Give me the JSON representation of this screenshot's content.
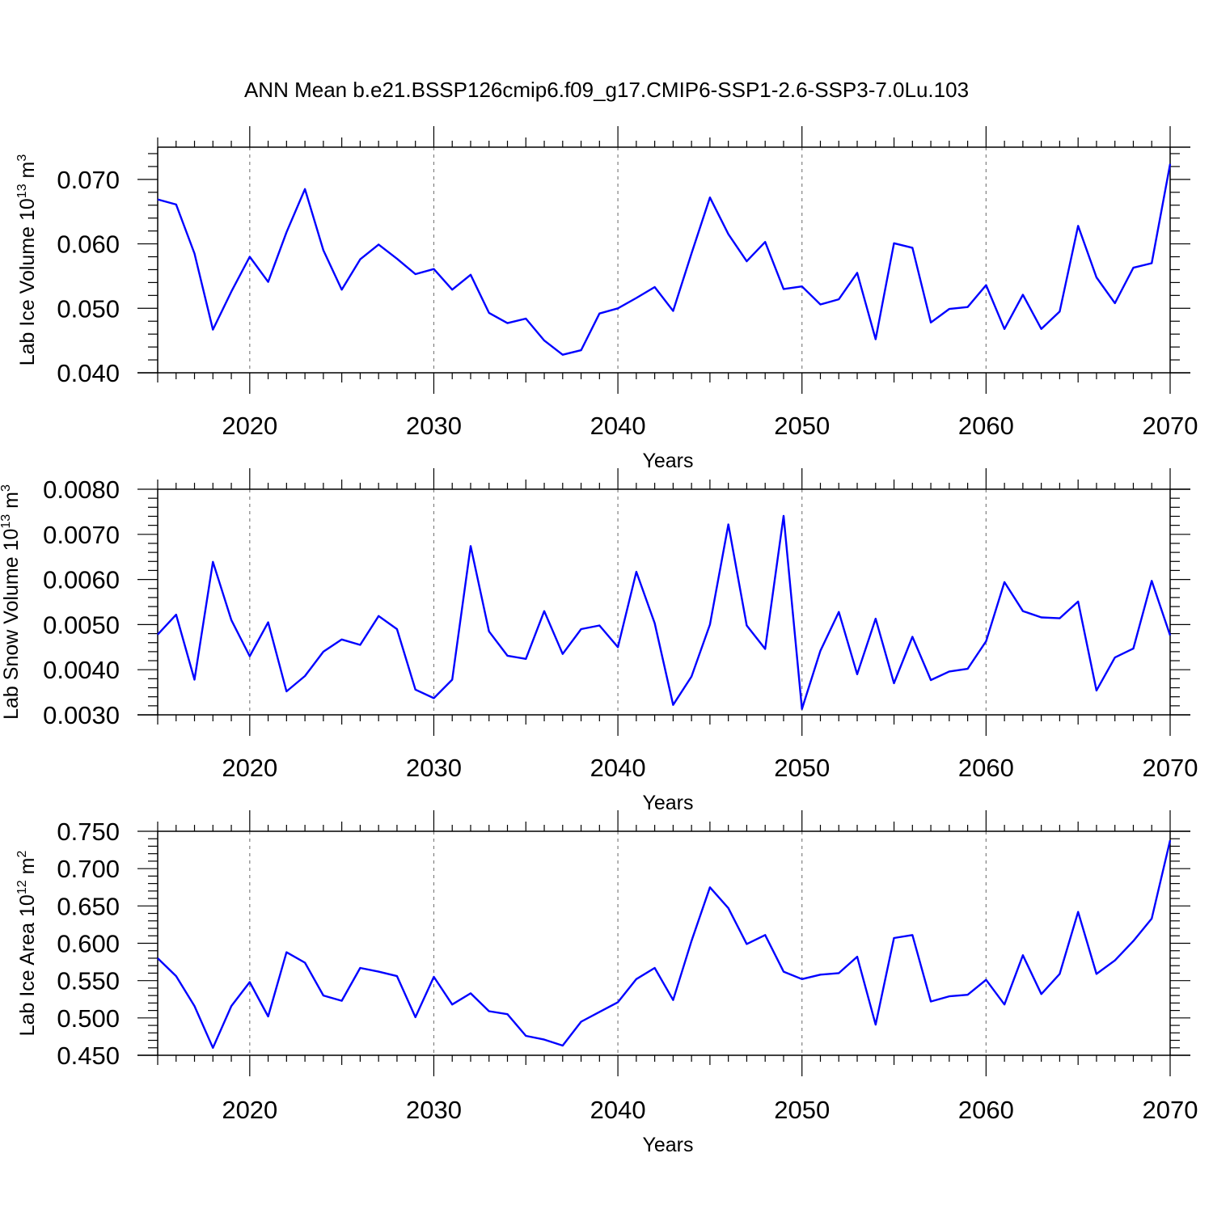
{
  "title": "ANN Mean b.e21.BSSP126cmip6.f09_g17.CMIP6-SSP1-2.6-SSP3-7.0Lu.103",
  "colors": {
    "line": "#0000ff",
    "axis": "#000000",
    "grid": "#808080",
    "background": "#ffffff"
  },
  "chart_data": [
    {
      "type": "line",
      "name": "ice-volume",
      "ylabel_main": "Lab Ice Volume 10",
      "ylabel_exp": "13",
      "ylabel_unit": "m",
      "ylabel_unit_exp": "3",
      "xlabel": "Years",
      "xlim": [
        2015,
        2070
      ],
      "ylim": [
        0.04,
        0.075
      ],
      "yticks": [
        0.04,
        0.05,
        0.06,
        0.07
      ],
      "ytick_labels": [
        "0.040",
        "0.050",
        "0.060",
        "0.070"
      ],
      "xticks": [
        2020,
        2030,
        2040,
        2050,
        2060,
        2070
      ],
      "xtick_labels": [
        "2020",
        "2030",
        "2040",
        "2050",
        "2060",
        "2070"
      ],
      "grid": "vertical dashed at major x ticks",
      "x": [
        2015,
        2016,
        2017,
        2018,
        2019,
        2020,
        2021,
        2022,
        2023,
        2024,
        2025,
        2026,
        2027,
        2028,
        2029,
        2030,
        2031,
        2032,
        2033,
        2034,
        2035,
        2036,
        2037,
        2038,
        2039,
        2040,
        2041,
        2042,
        2043,
        2044,
        2045,
        2046,
        2047,
        2048,
        2049,
        2050,
        2051,
        2052,
        2053,
        2054,
        2055,
        2056,
        2057,
        2058,
        2059,
        2060,
        2061,
        2062,
        2063,
        2064,
        2065,
        2066,
        2067,
        2068,
        2069,
        2070
      ],
      "y": [
        0.0669,
        0.0661,
        0.0585,
        0.0467,
        0.0526,
        0.058,
        0.0541,
        0.0618,
        0.0685,
        0.059,
        0.0529,
        0.0576,
        0.0599,
        0.0577,
        0.0553,
        0.0561,
        0.0529,
        0.0552,
        0.0493,
        0.0477,
        0.0484,
        0.045,
        0.0428,
        0.0435,
        0.0492,
        0.05,
        0.0516,
        0.0533,
        0.0496,
        0.0585,
        0.0672,
        0.0615,
        0.0573,
        0.0603,
        0.053,
        0.0534,
        0.0506,
        0.0514,
        0.0555,
        0.0452,
        0.0601,
        0.0594,
        0.0478,
        0.0499,
        0.0502,
        0.0536,
        0.0468,
        0.0521,
        0.0468,
        0.0495,
        0.0628,
        0.0548,
        0.0508,
        0.0563,
        0.057,
        0.0724
      ]
    },
    {
      "type": "line",
      "name": "snow-volume",
      "ylabel_main": "Lab Snow Volume 10",
      "ylabel_exp": "13",
      "ylabel_unit": "m",
      "ylabel_unit_exp": "3",
      "xlabel": "Years",
      "xlim": [
        2015,
        2070
      ],
      "ylim": [
        0.003,
        0.008
      ],
      "yticks": [
        0.003,
        0.004,
        0.005,
        0.006,
        0.007,
        0.008
      ],
      "ytick_labels": [
        "0.0030",
        "0.0040",
        "0.0050",
        "0.0060",
        "0.0070",
        "0.0080"
      ],
      "xticks": [
        2020,
        2030,
        2040,
        2050,
        2060,
        2070
      ],
      "xtick_labels": [
        "2020",
        "2030",
        "2040",
        "2050",
        "2060",
        "2070"
      ],
      "grid": "vertical dashed at major x ticks",
      "x": [
        2015,
        2016,
        2017,
        2018,
        2019,
        2020,
        2021,
        2022,
        2023,
        2024,
        2025,
        2026,
        2027,
        2028,
        2029,
        2030,
        2031,
        2032,
        2033,
        2034,
        2035,
        2036,
        2037,
        2038,
        2039,
        2040,
        2041,
        2042,
        2043,
        2044,
        2045,
        2046,
        2047,
        2048,
        2049,
        2050,
        2051,
        2052,
        2053,
        2054,
        2055,
        2056,
        2057,
        2058,
        2059,
        2060,
        2061,
        2062,
        2063,
        2064,
        2065,
        2066,
        2067,
        2068,
        2069,
        2070
      ],
      "y": [
        0.00478,
        0.00522,
        0.00378,
        0.00639,
        0.0051,
        0.0043,
        0.00505,
        0.00352,
        0.00386,
        0.0044,
        0.00467,
        0.00455,
        0.00519,
        0.0049,
        0.00356,
        0.00337,
        0.00378,
        0.00674,
        0.00485,
        0.00431,
        0.00424,
        0.0053,
        0.00435,
        0.0049,
        0.00498,
        0.0045,
        0.00617,
        0.00503,
        0.00322,
        0.00385,
        0.005,
        0.00722,
        0.00498,
        0.00446,
        0.00741,
        0.00313,
        0.00442,
        0.00528,
        0.0039,
        0.00513,
        0.0037,
        0.00473,
        0.00377,
        0.00396,
        0.00402,
        0.00463,
        0.00594,
        0.0053,
        0.00516,
        0.00514,
        0.00551,
        0.00354,
        0.00427,
        0.00447,
        0.00597,
        0.00476
      ]
    },
    {
      "type": "line",
      "name": "ice-area",
      "ylabel_main": "Lab Ice Area 10",
      "ylabel_exp": "12",
      "ylabel_unit": "m",
      "ylabel_unit_exp": "2",
      "xlabel": "Years",
      "xlim": [
        2015,
        2070
      ],
      "ylim": [
        0.45,
        0.75
      ],
      "yticks": [
        0.45,
        0.5,
        0.55,
        0.6,
        0.65,
        0.7,
        0.75
      ],
      "ytick_labels": [
        "0.450",
        "0.500",
        "0.550",
        "0.600",
        "0.650",
        "0.700",
        "0.750"
      ],
      "xticks": [
        2020,
        2030,
        2040,
        2050,
        2060,
        2070
      ],
      "xtick_labels": [
        "2020",
        "2030",
        "2040",
        "2050",
        "2060",
        "2070"
      ],
      "grid": "vertical dashed at major x ticks",
      "x": [
        2015,
        2016,
        2017,
        2018,
        2019,
        2020,
        2021,
        2022,
        2023,
        2024,
        2025,
        2026,
        2027,
        2028,
        2029,
        2030,
        2031,
        2032,
        2033,
        2034,
        2035,
        2036,
        2037,
        2038,
        2039,
        2040,
        2041,
        2042,
        2043,
        2044,
        2045,
        2046,
        2047,
        2048,
        2049,
        2050,
        2051,
        2052,
        2053,
        2054,
        2055,
        2056,
        2057,
        2058,
        2059,
        2060,
        2061,
        2062,
        2063,
        2064,
        2065,
        2066,
        2067,
        2068,
        2069,
        2070
      ],
      "y": [
        0.58,
        0.556,
        0.516,
        0.46,
        0.516,
        0.548,
        0.502,
        0.588,
        0.574,
        0.53,
        0.523,
        0.567,
        0.562,
        0.556,
        0.501,
        0.555,
        0.518,
        0.533,
        0.509,
        0.505,
        0.476,
        0.471,
        0.463,
        0.495,
        0.508,
        0.521,
        0.552,
        0.567,
        0.524,
        0.603,
        0.675,
        0.647,
        0.599,
        0.611,
        0.562,
        0.552,
        0.558,
        0.56,
        0.582,
        0.491,
        0.607,
        0.611,
        0.522,
        0.529,
        0.531,
        0.551,
        0.518,
        0.584,
        0.532,
        0.559,
        0.642,
        0.559,
        0.577,
        0.603,
        0.633,
        0.738
      ]
    }
  ]
}
